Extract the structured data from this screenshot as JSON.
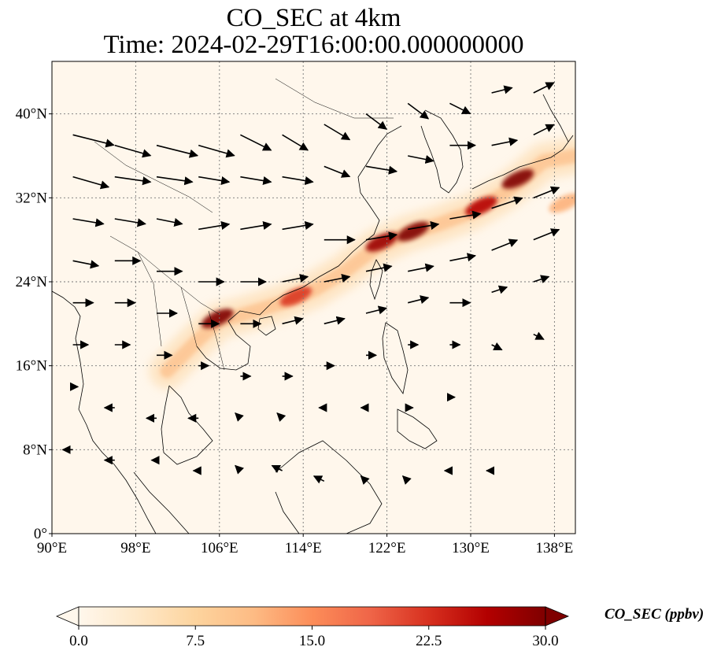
{
  "title_line1": "CO_SEC at 4km",
  "title_line2": "Time: 2024-02-29T16:00:00.000000000",
  "map": {
    "lon_range": [
      90,
      140
    ],
    "lat_range": [
      0,
      45
    ],
    "lon_ticks": [
      {
        "v": 90,
        "label": "90°E"
      },
      {
        "v": 98,
        "label": "98°E"
      },
      {
        "v": 106,
        "label": "106°E"
      },
      {
        "v": 114,
        "label": "114°E"
      },
      {
        "v": 122,
        "label": "122°E"
      },
      {
        "v": 130,
        "label": "130°E"
      },
      {
        "v": 138,
        "label": "138°E"
      }
    ],
    "lat_ticks": [
      {
        "v": 0,
        "label": "0°"
      },
      {
        "v": 8,
        "label": "8°N"
      },
      {
        "v": 16,
        "label": "16°N"
      },
      {
        "v": 24,
        "label": "24°N"
      },
      {
        "v": 32,
        "label": "32°N"
      },
      {
        "v": 40,
        "label": "40°N"
      }
    ],
    "gridlines": true,
    "plume_color_scale": "OrRd",
    "plume_path": [
      [
        101,
        15.5
      ],
      [
        104,
        18.5
      ],
      [
        106,
        20.3
      ],
      [
        108,
        20.8
      ],
      [
        112,
        22
      ],
      [
        115,
        23.2
      ],
      [
        118,
        25
      ],
      [
        121,
        27.3
      ],
      [
        124,
        28.6
      ],
      [
        127,
        29.5
      ],
      [
        130,
        30.6
      ],
      [
        133,
        32.3
      ],
      [
        135,
        33.8
      ],
      [
        137,
        35.5
      ],
      [
        140,
        36
      ]
    ],
    "hotspots": [
      {
        "lon": 105.8,
        "lat": 20.5,
        "value": 30
      },
      {
        "lon": 113.3,
        "lat": 22.6,
        "value": 22
      },
      {
        "lon": 121.5,
        "lat": 27.8,
        "value": 28
      },
      {
        "lon": 124.5,
        "lat": 28.8,
        "value": 30
      },
      {
        "lon": 131,
        "lat": 31.2,
        "value": 26
      },
      {
        "lon": 134.5,
        "lat": 33.8,
        "value": 30
      },
      {
        "lon": 139,
        "lat": 31.5,
        "value": 12
      }
    ],
    "wind_vectors": [
      [
        92,
        38,
        8,
        -2
      ],
      [
        96,
        37,
        7,
        -2
      ],
      [
        100,
        37,
        8,
        -2
      ],
      [
        104,
        37,
        7,
        -2
      ],
      [
        108,
        38,
        6,
        -3
      ],
      [
        112,
        38,
        5,
        -3
      ],
      [
        116,
        39,
        5,
        -3
      ],
      [
        120,
        40,
        4,
        -3
      ],
      [
        124,
        41,
        4,
        -3
      ],
      [
        128,
        41,
        4,
        -2
      ],
      [
        132,
        42,
        4,
        1
      ],
      [
        136,
        42,
        4,
        2
      ],
      [
        92,
        34,
        7,
        -2
      ],
      [
        96,
        34,
        7,
        -1
      ],
      [
        100,
        34,
        7,
        -1
      ],
      [
        104,
        34,
        6,
        -1
      ],
      [
        108,
        34,
        6,
        -1
      ],
      [
        112,
        34,
        6,
        -1
      ],
      [
        116,
        35,
        5,
        -2
      ],
      [
        120,
        35,
        6,
        -1
      ],
      [
        124,
        36,
        5,
        -1
      ],
      [
        128,
        37,
        5,
        0
      ],
      [
        132,
        37,
        5,
        1
      ],
      [
        136,
        38,
        4,
        2
      ],
      [
        92,
        30,
        6,
        -1
      ],
      [
        96,
        30,
        6,
        -1
      ],
      [
        100,
        30,
        5,
        -1
      ],
      [
        104,
        29,
        6,
        1
      ],
      [
        108,
        29,
        6,
        1
      ],
      [
        112,
        29,
        6,
        1
      ],
      [
        116,
        28,
        6,
        0
      ],
      [
        120,
        28,
        6,
        1
      ],
      [
        124,
        29,
        6,
        1
      ],
      [
        128,
        30,
        6,
        1
      ],
      [
        132,
        31,
        6,
        2
      ],
      [
        136,
        32,
        5,
        2
      ],
      [
        92,
        26,
        5,
        -1
      ],
      [
        96,
        26,
        5,
        0
      ],
      [
        100,
        25,
        5,
        0
      ],
      [
        104,
        24,
        5,
        0
      ],
      [
        108,
        24,
        5,
        0
      ],
      [
        112,
        24,
        5,
        1
      ],
      [
        116,
        24,
        5,
        1
      ],
      [
        120,
        25,
        5,
        1
      ],
      [
        124,
        25,
        5,
        1
      ],
      [
        128,
        26,
        5,
        1
      ],
      [
        132,
        27,
        5,
        2
      ],
      [
        136,
        28,
        5,
        2
      ],
      [
        92,
        22,
        4,
        0
      ],
      [
        96,
        22,
        4,
        0
      ],
      [
        100,
        21,
        4,
        0
      ],
      [
        104,
        20,
        4,
        0
      ],
      [
        108,
        20,
        4,
        0
      ],
      [
        112,
        20,
        4,
        1
      ],
      [
        116,
        20,
        4,
        1
      ],
      [
        120,
        21,
        4,
        1
      ],
      [
        124,
        22,
        4,
        1
      ],
      [
        128,
        22,
        4,
        0
      ],
      [
        132,
        23,
        3,
        1
      ],
      [
        136,
        24,
        3,
        1
      ],
      [
        92,
        18,
        3,
        0
      ],
      [
        96,
        18,
        3,
        0
      ],
      [
        100,
        17,
        3,
        0
      ],
      [
        104,
        16,
        2,
        0
      ],
      [
        108,
        15,
        2,
        0
      ],
      [
        112,
        15,
        2,
        0
      ],
      [
        116,
        16,
        2,
        0
      ],
      [
        120,
        17,
        2,
        0
      ],
      [
        124,
        18,
        2,
        0
      ],
      [
        128,
        18,
        2,
        0
      ],
      [
        132,
        18,
        2,
        -1
      ],
      [
        136,
        19,
        2,
        -1
      ],
      [
        92,
        14,
        1,
        0
      ],
      [
        96,
        12,
        -2,
        0
      ],
      [
        100,
        11,
        -2,
        0
      ],
      [
        104,
        11,
        -2,
        0
      ],
      [
        108,
        11,
        -1,
        1
      ],
      [
        112,
        11,
        -1,
        1
      ],
      [
        116,
        12,
        -1,
        0
      ],
      [
        120,
        12,
        -1,
        0
      ],
      [
        124,
        12,
        1,
        0
      ],
      [
        128,
        13,
        1,
        0
      ],
      [
        92,
        8,
        -2,
        0
      ],
      [
        96,
        7,
        -2,
        0
      ],
      [
        100,
        7,
        -1,
        0
      ],
      [
        104,
        6,
        -1,
        0
      ],
      [
        108,
        6,
        -1,
        1
      ],
      [
        112,
        6,
        -2,
        1
      ],
      [
        116,
        5,
        -2,
        1
      ],
      [
        120,
        5,
        -1,
        1
      ],
      [
        124,
        5,
        -1,
        1
      ],
      [
        128,
        6,
        -1,
        0
      ],
      [
        132,
        6,
        -1,
        0
      ]
    ]
  },
  "colorbar": {
    "min": 0,
    "max": 30,
    "ticks": [
      {
        "v": 0,
        "label": "0.0"
      },
      {
        "v": 7.5,
        "label": "7.5"
      },
      {
        "v": 15,
        "label": "15.0"
      },
      {
        "v": 22.5,
        "label": "22.5"
      },
      {
        "v": 30,
        "label": "30.0"
      }
    ],
    "label": "CO_SEC (ppbv)",
    "extend": "both",
    "colors": [
      "#fff7ec",
      "#fee8c8",
      "#fdd49e",
      "#fdbb84",
      "#fc8d59",
      "#ef6548",
      "#d7301f",
      "#b30000",
      "#7f0000"
    ]
  }
}
